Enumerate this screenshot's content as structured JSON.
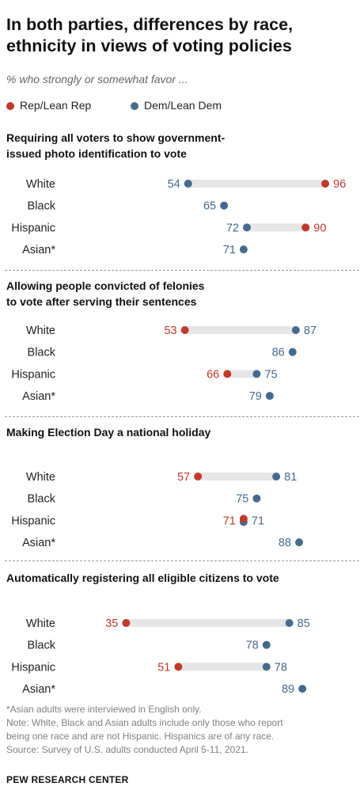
{
  "header": {
    "title_line1": "In both parties, differences by race,",
    "title_line2": "ethnicity in views of voting policies",
    "subtitle": "% who strongly or somewhat favor ..."
  },
  "legend": {
    "rep_label": "Rep/Lean Rep",
    "dem_label": "Dem/Lean Dem"
  },
  "colors": {
    "rep": "#c0392b",
    "dem": "#456a8d",
    "bar": "#e6e6e6",
    "rep_text": "#c0392b",
    "dem_text": "#456a8d"
  },
  "chart_data": {
    "type": "dot-range",
    "categories": [
      "White",
      "Black",
      "Hispanic",
      "Asian*"
    ],
    "series_names": [
      "Rep/Lean Rep",
      "Dem/Lean Dem"
    ],
    "panels": [
      {
        "title_line1": "Requiring all voters to show government-",
        "title_line2": "issued photo identification to vote",
        "rows": [
          {
            "label": "White",
            "rep": 96,
            "dem": 54
          },
          {
            "label": "Black",
            "rep": null,
            "dem": 65
          },
          {
            "label": "Hispanic",
            "rep": 90,
            "dem": 72
          },
          {
            "label": "Asian*",
            "rep": null,
            "dem": 71
          }
        ]
      },
      {
        "title_line1": "Allowing people convicted of felonies",
        "title_line2": "to vote after serving their sentences",
        "rows": [
          {
            "label": "White",
            "rep": 53,
            "dem": 87
          },
          {
            "label": "Black",
            "rep": null,
            "dem": 86
          },
          {
            "label": "Hispanic",
            "rep": 66,
            "dem": 75
          },
          {
            "label": "Asian*",
            "rep": null,
            "dem": 79
          }
        ]
      },
      {
        "title_line1": "Making Election Day a national holiday",
        "title_line2": "",
        "rows": [
          {
            "label": "White",
            "rep": 57,
            "dem": 81
          },
          {
            "label": "Black",
            "rep": null,
            "dem": 75
          },
          {
            "label": "Hispanic",
            "rep": 71,
            "dem": 71
          },
          {
            "label": "Asian*",
            "rep": null,
            "dem": 88
          }
        ]
      },
      {
        "title_line1": "Automatically registering all eligible citizens to vote",
        "title_line2": "",
        "rows": [
          {
            "label": "White",
            "rep": 35,
            "dem": 85
          },
          {
            "label": "Black",
            "rep": null,
            "dem": 78
          },
          {
            "label": "Hispanic",
            "rep": 51,
            "dem": 78
          },
          {
            "label": "Asian*",
            "rep": null,
            "dem": 89
          }
        ]
      }
    ]
  },
  "notes": {
    "line1": "*Asian adults were interviewed in English only.",
    "line2": "Note: White, Black and Asian adults include only those who report",
    "line3": "being one race and are not Hispanic. Hispanics are of any race.",
    "line4": "Source: Survey of U.S. adults conducted April 5-11, 2021.",
    "org": "PEW RESEARCH CENTER"
  }
}
